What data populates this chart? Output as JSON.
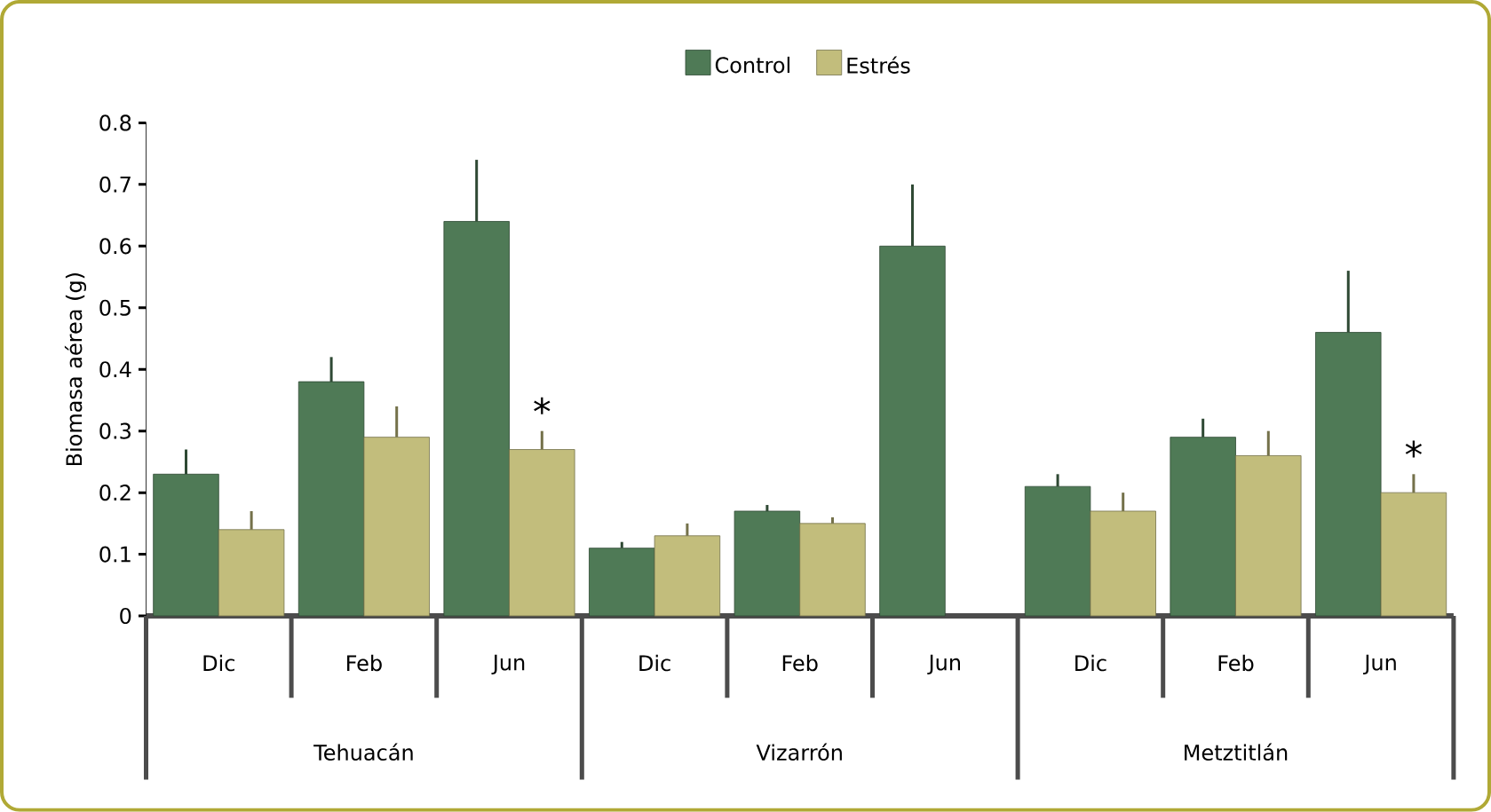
{
  "chart_data": {
    "type": "bar",
    "ylabel": "Biomasa aérea (g)",
    "categories": [
      "Dic",
      "Feb",
      "Jun",
      "Dic",
      "Feb",
      "Jun",
      "Dic",
      "Feb",
      "Jun"
    ],
    "annotations": [
      "Tehuacán",
      "Vizarrón",
      "Metztitlán"
    ],
    "series": [
      {
        "name": "Control",
        "color": "#4f7a56",
        "values": [
          0.23,
          0.38,
          0.64,
          0.11,
          0.17,
          0.6,
          0.21,
          0.29,
          0.46
        ],
        "errors": [
          [
            0.23,
            0.27
          ],
          [
            0.38,
            0.42
          ],
          [
            0.64,
            0.74
          ],
          [
            0.11,
            0.12
          ],
          [
            0.17,
            0.18
          ],
          [
            0.6,
            0.7
          ],
          [
            0.21,
            0.23
          ],
          [
            0.29,
            0.32
          ],
          [
            0.46,
            0.56
          ]
        ]
      },
      {
        "name": "Estrés",
        "color": "#c2bd7c",
        "values": [
          0.14,
          0.29,
          0.27,
          0.13,
          0.15,
          null,
          0.17,
          0.26,
          0.2
        ],
        "errors": [
          [
            0.14,
            0.17
          ],
          [
            0.29,
            0.34
          ],
          [
            0.27,
            0.3
          ],
          [
            0.13,
            0.15
          ],
          [
            0.15,
            0.16
          ],
          null,
          [
            0.17,
            0.2
          ],
          [
            0.26,
            0.3
          ],
          [
            0.2,
            0.23
          ]
        ],
        "value_labels": [
          null,
          null,
          "*",
          null,
          null,
          null,
          null,
          null,
          "*"
        ]
      }
    ],
    "ylim": [
      0,
      0.8
    ],
    "yticks": [
      0,
      0.1,
      0.2,
      0.3,
      0.4,
      0.5,
      0.6,
      0.7,
      0.8
    ],
    "legend": "top",
    "grid": false
  }
}
